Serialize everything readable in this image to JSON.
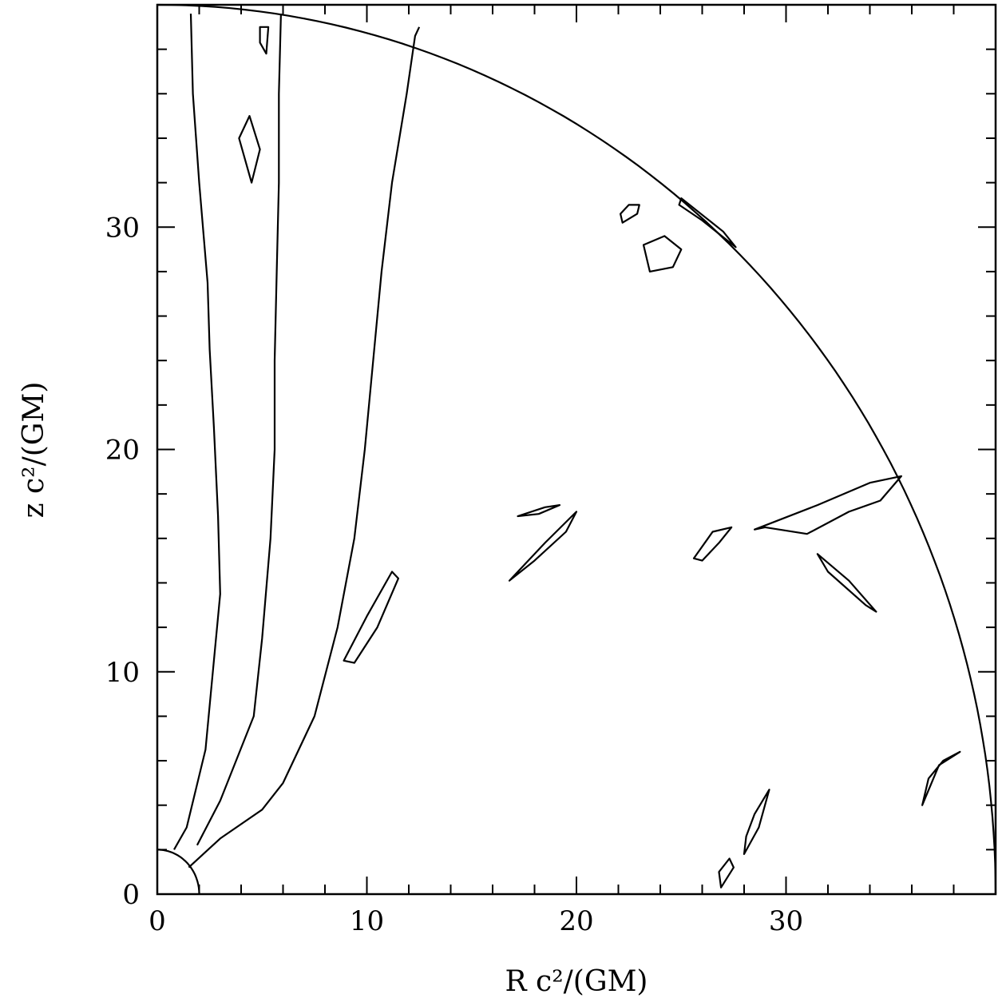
{
  "chart_data": {
    "type": "contour",
    "xlabel": "R c²/(GM)",
    "ylabel": "z c²/(GM)",
    "xlim": [
      0,
      40
    ],
    "ylim": [
      0,
      40
    ],
    "x_major_ticks": [
      0,
      10,
      20,
      30
    ],
    "y_major_ticks": [
      0,
      10,
      20,
      30
    ],
    "x_tick_labels": [
      "0",
      "10",
      "20",
      "30"
    ],
    "y_tick_labels": [
      "0",
      "10",
      "20",
      "30"
    ],
    "minor_tick_step": 2,
    "grid": false,
    "legend": "none",
    "boundaries": {
      "outer_radius": 40,
      "inner_radius": 2
    },
    "contours": [
      {
        "name": "left-jet-band",
        "closed": false,
        "points": [
          [
            0.8,
            2.0
          ],
          [
            1.4,
            3.0
          ],
          [
            2.3,
            6.5
          ],
          [
            2.7,
            10.5
          ],
          [
            3.0,
            13.5
          ],
          [
            2.9,
            17
          ],
          [
            2.7,
            21
          ],
          [
            2.5,
            24.5
          ],
          [
            2.4,
            27.5
          ],
          [
            2.0,
            32
          ],
          [
            1.7,
            36
          ],
          [
            1.6,
            39.6
          ]
        ]
      },
      {
        "name": "middle-band",
        "closed": false,
        "points": [
          [
            1.9,
            2.2
          ],
          [
            3.0,
            4.2
          ],
          [
            4.6,
            8.0
          ],
          [
            5.0,
            11.5
          ],
          [
            5.4,
            16
          ],
          [
            5.6,
            20
          ],
          [
            5.6,
            24
          ],
          [
            5.7,
            28
          ],
          [
            5.8,
            32
          ],
          [
            5.8,
            36
          ],
          [
            5.9,
            39.6
          ]
        ]
      },
      {
        "name": "funnel-outer-edge",
        "closed": false,
        "points": [
          [
            1.5,
            1.2
          ],
          [
            3.0,
            2.5
          ],
          [
            5.0,
            3.8
          ],
          [
            6.0,
            5.0
          ],
          [
            7.5,
            8.0
          ],
          [
            8.6,
            12
          ],
          [
            9.4,
            16
          ],
          [
            9.9,
            20
          ],
          [
            10.3,
            24
          ],
          [
            10.7,
            28
          ],
          [
            11.2,
            32
          ],
          [
            11.9,
            36
          ],
          [
            12.3,
            38.6
          ],
          [
            12.5,
            39.0
          ]
        ]
      },
      {
        "name": "elongated-blob-1",
        "closed": true,
        "points": [
          [
            8.9,
            10.5
          ],
          [
            10.0,
            12.5
          ],
          [
            11.2,
            14.5
          ],
          [
            11.5,
            14.2
          ],
          [
            10.5,
            12
          ],
          [
            9.4,
            10.4
          ]
        ]
      },
      {
        "name": "upper-left-blob",
        "closed": true,
        "points": [
          [
            4.9,
            39.0
          ],
          [
            5.3,
            39.0
          ],
          [
            5.2,
            37.8
          ],
          [
            4.9,
            38.3
          ]
        ]
      },
      {
        "name": "left-diamond",
        "closed": true,
        "points": [
          [
            4.4,
            35.0
          ],
          [
            4.9,
            33.5
          ],
          [
            4.5,
            32.0
          ],
          [
            3.9,
            34.0
          ]
        ]
      },
      {
        "name": "blob-a",
        "closed": true,
        "points": [
          [
            23.5,
            28.0
          ],
          [
            24.6,
            28.2
          ],
          [
            25.0,
            29.0
          ],
          [
            24.2,
            29.6
          ],
          [
            23.2,
            29.2
          ]
        ]
      },
      {
        "name": "blob-b",
        "closed": true,
        "points": [
          [
            22.2,
            30.2
          ],
          [
            22.9,
            30.6
          ],
          [
            23.0,
            31.0
          ],
          [
            22.5,
            31.0
          ],
          [
            22.1,
            30.6
          ]
        ]
      },
      {
        "name": "rim-strip",
        "closed": true,
        "points": [
          [
            25.0,
            31.3
          ],
          [
            27.0,
            29.8
          ],
          [
            27.6,
            29.1
          ],
          [
            26.0,
            30.3
          ],
          [
            24.9,
            31.0
          ]
        ]
      },
      {
        "name": "big-arm",
        "closed": true,
        "points": [
          [
            28.5,
            16.4
          ],
          [
            31.5,
            17.5
          ],
          [
            34.0,
            18.5
          ],
          [
            35.5,
            18.8
          ],
          [
            34.5,
            17.7
          ],
          [
            33.0,
            17.2
          ],
          [
            31.0,
            16.2
          ],
          [
            29.0,
            16.5
          ]
        ]
      },
      {
        "name": "arm-left",
        "closed": true,
        "points": [
          [
            25.6,
            15.1
          ],
          [
            26.5,
            16.3
          ],
          [
            27.4,
            16.5
          ],
          [
            26.8,
            15.8
          ],
          [
            26.0,
            15.0
          ]
        ]
      },
      {
        "name": "streak-1",
        "closed": true,
        "points": [
          [
            16.8,
            14.1
          ],
          [
            18.5,
            15.8
          ],
          [
            20.0,
            17.2
          ],
          [
            19.5,
            16.3
          ],
          [
            18.0,
            15.0
          ]
        ]
      },
      {
        "name": "streak-2",
        "closed": true,
        "points": [
          [
            17.2,
            17.0
          ],
          [
            18.5,
            17.4
          ],
          [
            19.2,
            17.5
          ],
          [
            18.2,
            17.1
          ]
        ]
      },
      {
        "name": "right-lens",
        "closed": true,
        "points": [
          [
            31.5,
            15.3
          ],
          [
            33.0,
            14.1
          ],
          [
            34.3,
            12.7
          ],
          [
            33.8,
            13.0
          ],
          [
            32.0,
            14.5
          ]
        ]
      },
      {
        "name": "right-low-blob",
        "closed": true,
        "points": [
          [
            36.5,
            4.0
          ],
          [
            37.3,
            5.8
          ],
          [
            38.3,
            6.4
          ],
          [
            37.5,
            6.0
          ],
          [
            36.8,
            5.2
          ]
        ]
      },
      {
        "name": "base-cluster-1",
        "closed": true,
        "points": [
          [
            28.0,
            1.8
          ],
          [
            28.7,
            3.0
          ],
          [
            29.2,
            4.7
          ],
          [
            28.5,
            3.6
          ],
          [
            28.1,
            2.6
          ]
        ]
      },
      {
        "name": "base-cluster-2",
        "closed": true,
        "points": [
          [
            26.9,
            0.3
          ],
          [
            27.5,
            1.2
          ],
          [
            27.3,
            1.6
          ],
          [
            26.8,
            1.0
          ]
        ]
      }
    ]
  }
}
